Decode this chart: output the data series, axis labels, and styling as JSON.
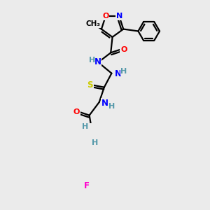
{
  "background_color": "#ebebeb",
  "atom_colors": {
    "O": "#ff0000",
    "N": "#0000ff",
    "S": "#cccc00",
    "F": "#ff00cc",
    "C": "#000000",
    "H": "#5599aa"
  },
  "bond_color": "#000000",
  "bond_lw": 1.6
}
